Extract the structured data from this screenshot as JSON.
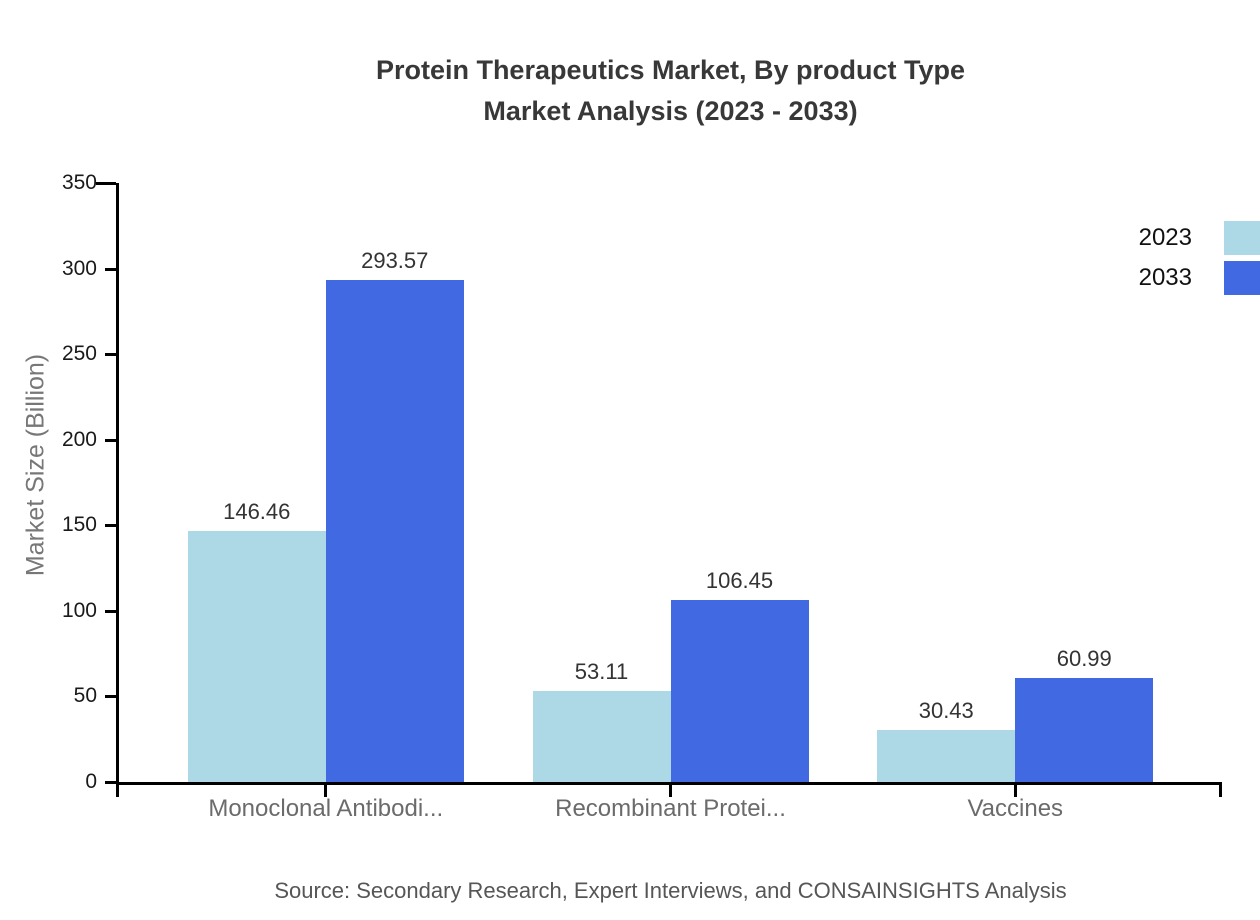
{
  "title": {
    "line1": "Protein Therapeutics Market, By product Type",
    "line2": "Market Analysis (2023 - 2033)"
  },
  "chart_data": {
    "type": "bar",
    "title": "Protein Therapeutics Market, By product Type Market Analysis (2023 - 2033)",
    "categories": [
      "Monoclonal Antibodi...",
      "Recombinant Protei...",
      "Vaccines"
    ],
    "series": [
      {
        "name": "2023",
        "color": "#add8e6",
        "values": [
          146.46,
          53.11,
          30.43
        ]
      },
      {
        "name": "2033",
        "color": "#4169e1",
        "values": [
          293.57,
          106.45,
          60.99
        ]
      }
    ],
    "xlabel": "",
    "ylabel": "Market Size (Billion)",
    "ylim": [
      0,
      350
    ],
    "yticks": [
      0,
      50,
      100,
      150,
      200,
      250,
      300,
      350
    ],
    "grid": false,
    "value_labels": true,
    "legend_position": "right-edge",
    "axis_color": "#000000",
    "text_colors": {
      "title": "#383838",
      "tick_labels": "#1a1a1a",
      "category_labels": "#6b6b6b",
      "value_labels": "#333333",
      "axis_title": "#777777",
      "source": "#565656"
    }
  },
  "source": {
    "text": "Source: Secondary Research, Expert Interviews, and CONSAINSIGHTS Analysis"
  }
}
